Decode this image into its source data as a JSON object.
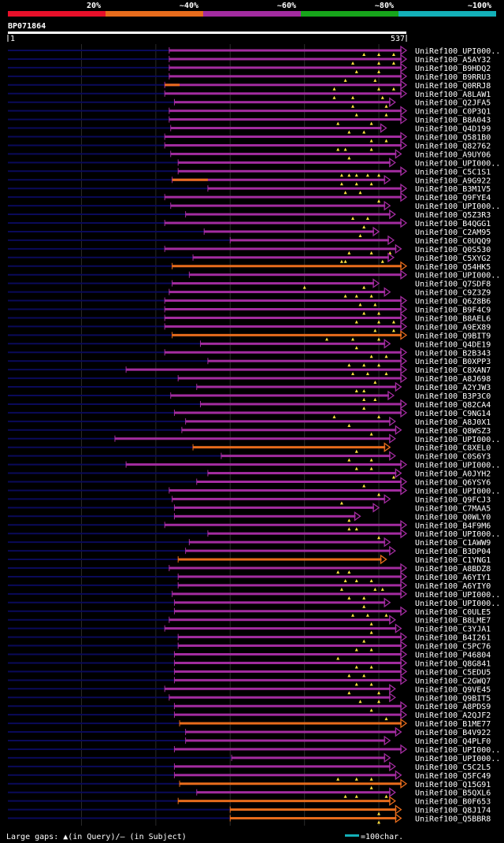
{
  "chart_data": {
    "type": "alignment-overview",
    "title": "BP071864",
    "query_range": [
      1,
      537
    ],
    "query_start_label": "1",
    "query_end_label": "537",
    "color_scale": [
      {
        "label": "20%",
        "color": "#e8102a"
      },
      {
        "label": "~40%",
        "color": "#e86c1c"
      },
      {
        "label": "~60%",
        "color": "#a32ca0"
      },
      {
        "label": "~80%",
        "color": "#17a51b"
      },
      {
        "label": "~100%",
        "color": "#13b0b8"
      }
    ],
    "gridlines": [
      100,
      200,
      300,
      400,
      500
    ],
    "legend": {
      "gaps_text": "Large gaps: ▲(in Query)/– (in Subject)",
      "scale_text": "=100char.",
      "scale_color": "#13b0b8"
    },
    "hits": [
      {
        "name": "UniRef100_UPI000..",
        "start": 218,
        "end": 537,
        "color": "#a32ca0",
        "gaps": [
          480,
          500,
          520
        ]
      },
      {
        "name": "UniRef100_A5AY32",
        "start": 218,
        "end": 537,
        "color": "#a32ca0",
        "gaps": [
          465,
          500,
          520
        ]
      },
      {
        "name": "UniRef100_B9HDQ2",
        "start": 218,
        "end": 537,
        "color": "#a32ca0",
        "gaps": [
          470,
          500
        ]
      },
      {
        "name": "UniRef100_B9RRU3",
        "start": 218,
        "end": 537,
        "color": "#a32ca0",
        "gaps": [
          455,
          495
        ]
      },
      {
        "name": "UniRef100_Q0RRJ8",
        "start": 212,
        "end": 537,
        "color": "#a32ca0",
        "gaps": [
          440,
          500,
          520
        ],
        "orange_segment": [
          212,
          232
        ]
      },
      {
        "name": "UniRef100_A8LAW1",
        "start": 212,
        "end": 537,
        "color": "#a32ca0",
        "gaps": [
          440,
          465,
          505
        ]
      },
      {
        "name": "UniRef100_Q2JFA5",
        "start": 225,
        "end": 522,
        "color": "#a32ca0",
        "gaps": [
          465,
          510
        ]
      },
      {
        "name": "UniRef100_C0P3Q1",
        "start": 218,
        "end": 537,
        "color": "#a32ca0",
        "gaps": [
          470,
          510
        ]
      },
      {
        "name": "UniRef100_B8A043",
        "start": 218,
        "end": 537,
        "color": "#a32ca0",
        "gaps": [
          445,
          490
        ]
      },
      {
        "name": "UniRef100_Q4D199",
        "start": 220,
        "end": 510,
        "color": "#a32ca0",
        "gaps": [
          460,
          480
        ]
      },
      {
        "name": "UniRef100_Q581B0",
        "start": 212,
        "end": 537,
        "color": "#a32ca0",
        "gaps": [
          490,
          510
        ]
      },
      {
        "name": "UniRef100_Q82762",
        "start": 212,
        "end": 537,
        "color": "#a32ca0",
        "gaps": [
          445,
          455,
          490
        ]
      },
      {
        "name": "UniRef100_A9UY06",
        "start": 220,
        "end": 530,
        "color": "#a32ca0",
        "gaps": [
          460
        ]
      },
      {
        "name": "UniRef100_UPI000..",
        "start": 230,
        "end": 522,
        "color": "#a32ca0",
        "gaps": []
      },
      {
        "name": "UniRef100_C5C1S1",
        "start": 230,
        "end": 537,
        "color": "#a32ca0",
        "gaps": [
          450,
          460,
          470,
          485,
          500
        ]
      },
      {
        "name": "UniRef100_A9G922",
        "start": 222,
        "end": 515,
        "color": "#a32ca0",
        "gaps": [
          450,
          470,
          490
        ],
        "orange_segment": [
          222,
          270
        ]
      },
      {
        "name": "UniRef100_B3M1V5",
        "start": 270,
        "end": 537,
        "color": "#a32ca0",
        "gaps": [
          455,
          475
        ]
      },
      {
        "name": "UniRef100_Q9FYE4",
        "start": 212,
        "end": 537,
        "color": "#a32ca0",
        "gaps": [
          500
        ]
      },
      {
        "name": "UniRef100_UPI000..",
        "start": 220,
        "end": 515,
        "color": "#a32ca0",
        "gaps": []
      },
      {
        "name": "UniRef100_Q5Z3R3",
        "start": 240,
        "end": 522,
        "color": "#a32ca0",
        "gaps": [
          465,
          485
        ]
      },
      {
        "name": "UniRef100_B4QGG1",
        "start": 212,
        "end": 537,
        "color": "#a32ca0",
        "gaps": [
          480
        ]
      },
      {
        "name": "UniRef100_C2AM95",
        "start": 265,
        "end": 500,
        "color": "#a32ca0",
        "gaps": [
          475
        ]
      },
      {
        "name": "UniRef100_C0UQQ9",
        "start": 300,
        "end": 520,
        "color": "#a32ca0",
        "gaps": []
      },
      {
        "name": "UniRef100_Q0S530",
        "start": 212,
        "end": 530,
        "color": "#a32ca0",
        "gaps": [
          460,
          490,
          515
        ]
      },
      {
        "name": "UniRef100_C5XYG2",
        "start": 250,
        "end": 520,
        "color": "#a32ca0",
        "gaps": [
          450,
          455,
          505
        ]
      },
      {
        "name": "UniRef100_Q54HK5",
        "start": 222,
        "end": 537,
        "color": "#e86c1c",
        "gaps": []
      },
      {
        "name": "UniRef100_UPI000..",
        "start": 245,
        "end": 537,
        "color": "#a32ca0",
        "gaps": []
      },
      {
        "name": "UniRef100_Q7SDF8",
        "start": 222,
        "end": 500,
        "color": "#a32ca0",
        "gaps": [
          400,
          480
        ]
      },
      {
        "name": "UniRef100_C9Z3Z9",
        "start": 218,
        "end": 515,
        "color": "#a32ca0",
        "gaps": [
          455,
          470,
          490
        ]
      },
      {
        "name": "UniRef100_Q6Z8B6",
        "start": 212,
        "end": 537,
        "color": "#a32ca0",
        "gaps": [
          475,
          495
        ]
      },
      {
        "name": "UniRef100_B9F4C9",
        "start": 212,
        "end": 537,
        "color": "#a32ca0",
        "gaps": [
          480,
          500
        ]
      },
      {
        "name": "UniRef100_B8AEL6",
        "start": 212,
        "end": 537,
        "color": "#a32ca0",
        "gaps": [
          470,
          500,
          520
        ]
      },
      {
        "name": "UniRef100_A9EX89",
        "start": 212,
        "end": 537,
        "color": "#a32ca0",
        "gaps": [
          495,
          520
        ]
      },
      {
        "name": "UniRef100_Q9BIT9",
        "start": 222,
        "end": 537,
        "color": "#e86c1c",
        "gaps": [
          430,
          465,
          500
        ]
      },
      {
        "name": "UniRef100_Q4DE19",
        "start": 260,
        "end": 515,
        "color": "#a32ca0",
        "gaps": [
          470
        ]
      },
      {
        "name": "UniRef100_B2B343",
        "start": 212,
        "end": 537,
        "color": "#a32ca0",
        "gaps": [
          490,
          510
        ]
      },
      {
        "name": "UniRef100_B0XPP3",
        "start": 270,
        "end": 537,
        "color": "#a32ca0",
        "gaps": [
          460,
          480,
          500
        ]
      },
      {
        "name": "UniRef100_C8XAN7",
        "start": 160,
        "end": 537,
        "color": "#a32ca0",
        "gaps": [
          465,
          485,
          510
        ]
      },
      {
        "name": "UniRef100_A8J698",
        "start": 230,
        "end": 537,
        "color": "#a32ca0",
        "gaps": [
          495
        ]
      },
      {
        "name": "UniRef100_A2YJW3",
        "start": 255,
        "end": 530,
        "color": "#a32ca0",
        "gaps": [
          470,
          480
        ]
      },
      {
        "name": "UniRef100_B3P3C0",
        "start": 220,
        "end": 520,
        "color": "#a32ca0",
        "gaps": [
          480,
          495
        ]
      },
      {
        "name": "UniRef100_Q82CA4",
        "start": 260,
        "end": 537,
        "color": "#a32ca0",
        "gaps": [
          480
        ]
      },
      {
        "name": "UniRef100_C9NG14",
        "start": 225,
        "end": 537,
        "color": "#a32ca0",
        "gaps": [
          440,
          500
        ]
      },
      {
        "name": "UniRef100_A8J0X1",
        "start": 240,
        "end": 522,
        "color": "#a32ca0",
        "gaps": [
          460
        ]
      },
      {
        "name": "UniRef100_Q8WSZ3",
        "start": 235,
        "end": 530,
        "color": "#a32ca0",
        "gaps": [
          490
        ]
      },
      {
        "name": "UniRef100_UPI000..",
        "start": 145,
        "end": 522,
        "color": "#a32ca0",
        "gaps": []
      },
      {
        "name": "UniRef100_C8XEL0",
        "start": 250,
        "end": 515,
        "color": "#e86c1c",
        "gaps": [
          470
        ]
      },
      {
        "name": "UniRef100_C0S6Y3",
        "start": 288,
        "end": 522,
        "color": "#a32ca0",
        "gaps": [
          460,
          490
        ]
      },
      {
        "name": "UniRef100_UPI000..",
        "start": 160,
        "end": 537,
        "color": "#a32ca0",
        "gaps": [
          470,
          490
        ]
      },
      {
        "name": "UniRef100_A0JYH2",
        "start": 270,
        "end": 530,
        "color": "#a32ca0",
        "gaps": [
          520
        ]
      },
      {
        "name": "UniRef100_Q6YSY6",
        "start": 255,
        "end": 537,
        "color": "#a32ca0",
        "gaps": [
          480
        ]
      },
      {
        "name": "UniRef100_UPI000..",
        "start": 218,
        "end": 537,
        "color": "#a32ca0",
        "gaps": [
          500
        ]
      },
      {
        "name": "UniRef100_Q9FCJ3",
        "start": 222,
        "end": 515,
        "color": "#a32ca0",
        "gaps": [
          450
        ]
      },
      {
        "name": "UniRef100_C7MAA5",
        "start": 225,
        "end": 500,
        "color": "#a32ca0",
        "gaps": []
      },
      {
        "name": "UniRef100_Q0WLY0",
        "start": 225,
        "end": 475,
        "color": "#a32ca0",
        "gaps": [
          460
        ]
      },
      {
        "name": "UniRef100_B4F9M6",
        "start": 212,
        "end": 537,
        "color": "#a32ca0",
        "gaps": [
          460,
          470
        ]
      },
      {
        "name": "UniRef100_UPI000..",
        "start": 270,
        "end": 537,
        "color": "#a32ca0",
        "gaps": [
          500
        ]
      },
      {
        "name": "UniRef100_C1AWW9",
        "start": 245,
        "end": 515,
        "color": "#a32ca0",
        "gaps": []
      },
      {
        "name": "UniRef100_B3DP04",
        "start": 240,
        "end": 522,
        "color": "#a32ca0",
        "gaps": []
      },
      {
        "name": "UniRef100_C1YNG1",
        "start": 230,
        "end": 510,
        "color": "#e86c1c",
        "gaps": []
      },
      {
        "name": "UniRef100_A8BDZ8",
        "start": 218,
        "end": 537,
        "color": "#a32ca0",
        "gaps": [
          445,
          460
        ]
      },
      {
        "name": "UniRef100_A6YIY1",
        "start": 230,
        "end": 537,
        "color": "#a32ca0",
        "gaps": [
          455,
          470,
          490
        ]
      },
      {
        "name": "UniRef100_A6YIY0",
        "start": 230,
        "end": 537,
        "color": "#a32ca0",
        "gaps": [
          450,
          495,
          505
        ]
      },
      {
        "name": "UniRef100_UPI000..",
        "start": 222,
        "end": 537,
        "color": "#a32ca0",
        "gaps": [
          460,
          480
        ]
      },
      {
        "name": "UniRef100_UPI000..",
        "start": 225,
        "end": 515,
        "color": "#a32ca0",
        "gaps": [
          480
        ]
      },
      {
        "name": "UniRef100_C0ULE5",
        "start": 225,
        "end": 537,
        "color": "#a32ca0",
        "gaps": [
          465,
          485,
          510
        ]
      },
      {
        "name": "UniRef100_B8LME7",
        "start": 218,
        "end": 522,
        "color": "#a32ca0",
        "gaps": [
          490
        ]
      },
      {
        "name": "UniRef100_C3YJA1",
        "start": 212,
        "end": 530,
        "color": "#a32ca0",
        "gaps": [
          490
        ]
      },
      {
        "name": "UniRef100_B4I261",
        "start": 230,
        "end": 537,
        "color": "#a32ca0",
        "gaps": [
          480
        ]
      },
      {
        "name": "UniRef100_C5PC76",
        "start": 230,
        "end": 537,
        "color": "#a32ca0",
        "gaps": [
          470,
          490
        ]
      },
      {
        "name": "UniRef100_P46804",
        "start": 225,
        "end": 537,
        "color": "#a32ca0",
        "gaps": [
          445
        ]
      },
      {
        "name": "UniRef100_Q8G841",
        "start": 225,
        "end": 537,
        "color": "#a32ca0",
        "gaps": [
          470,
          490
        ]
      },
      {
        "name": "UniRef100_C5EDU5",
        "start": 225,
        "end": 537,
        "color": "#a32ca0",
        "gaps": [
          460,
          480
        ]
      },
      {
        "name": "UniRef100_C2GWQ7",
        "start": 225,
        "end": 537,
        "color": "#a32ca0",
        "gaps": [
          470,
          490
        ]
      },
      {
        "name": "UniRef100_Q9VE45",
        "start": 212,
        "end": 522,
        "color": "#a32ca0",
        "gaps": [
          460,
          500
        ]
      },
      {
        "name": "UniRef100_Q9BIT5",
        "start": 218,
        "end": 522,
        "color": "#a32ca0",
        "gaps": [
          475,
          500
        ]
      },
      {
        "name": "UniRef100_A8PDS9",
        "start": 225,
        "end": 537,
        "color": "#a32ca0",
        "gaps": [
          490
        ]
      },
      {
        "name": "UniRef100_A2QJF2",
        "start": 225,
        "end": 537,
        "color": "#a32ca0",
        "gaps": [
          510
        ]
      },
      {
        "name": "UniRef100_B1ME77",
        "start": 232,
        "end": 537,
        "color": "#e86c1c",
        "gaps": []
      },
      {
        "name": "UniRef100_B4V922",
        "start": 240,
        "end": 530,
        "color": "#a32ca0",
        "gaps": []
      },
      {
        "name": "UniRef100_Q4PLF0",
        "start": 240,
        "end": 515,
        "color": "#a32ca0",
        "gaps": []
      },
      {
        "name": "UniRef100_UPI000..",
        "start": 225,
        "end": 537,
        "color": "#a32ca0",
        "gaps": []
      },
      {
        "name": "UniRef100_UPI000..",
        "start": 302,
        "end": 515,
        "color": "#a32ca0",
        "gaps": []
      },
      {
        "name": "UniRef100_C5C2L5",
        "start": 225,
        "end": 522,
        "color": "#a32ca0",
        "gaps": []
      },
      {
        "name": "UniRef100_Q5FC49",
        "start": 225,
        "end": 530,
        "color": "#a32ca0",
        "gaps": [
          445,
          470,
          490
        ]
      },
      {
        "name": "UniRef100_Q15G91",
        "start": 232,
        "end": 537,
        "color": "#e86c1c",
        "gaps": [
          490
        ]
      },
      {
        "name": "UniRef100_B5QXL6",
        "start": 255,
        "end": 522,
        "color": "#a32ca0",
        "gaps": [
          455,
          470,
          510
        ]
      },
      {
        "name": "UniRef100_B0F653",
        "start": 230,
        "end": 522,
        "color": "#e86c1c",
        "gaps": []
      },
      {
        "name": "UniRef100_Q8J174",
        "start": 300,
        "end": 530,
        "color": "#e86c1c",
        "gaps": [
          500
        ]
      },
      {
        "name": "UniRef100_Q5BBR8",
        "start": 300,
        "end": 530,
        "color": "#e86c1c",
        "gaps": [
          500
        ]
      }
    ]
  }
}
